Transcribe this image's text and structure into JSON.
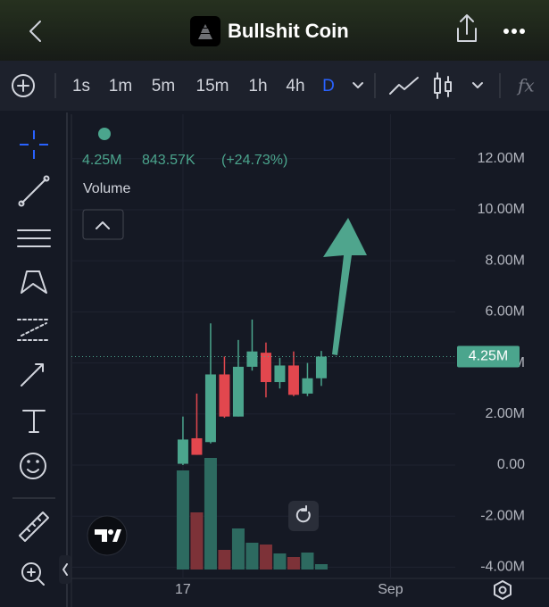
{
  "header": {
    "title": "Bullshit Coin"
  },
  "toolbar": {
    "intervals": [
      "1s",
      "1m",
      "5m",
      "15m",
      "1h",
      "4h",
      "D"
    ],
    "active": 6,
    "formula": "fx"
  },
  "chart_data": {
    "type": "candlestick",
    "legend": {
      "value": "4.25M",
      "volume": "843.57K",
      "change": "(+24.73%)",
      "series_name": "Volume"
    },
    "x": [
      0,
      1,
      2,
      3,
      4,
      5,
      6,
      7,
      8,
      9,
      10
    ],
    "xlim": [
      -8.06,
      19.68
    ],
    "xticks": [
      {
        "value": 0,
        "label": "17"
      },
      {
        "value": 15,
        "label": "Sep"
      }
    ],
    "ylim": [
      -4440000,
      13740000
    ],
    "yticks": [
      {
        "value": 12000000,
        "label": "12.00M"
      },
      {
        "value": 10000000,
        "label": "10.00M"
      },
      {
        "value": 8000000,
        "label": "8.00M"
      },
      {
        "value": 6000000,
        "label": "6.00M"
      },
      {
        "value": 4000000,
        "label": "4.00M"
      },
      {
        "value": 2000000,
        "label": "2.00M"
      },
      {
        "value": 0,
        "label": "0.00"
      },
      {
        "value": -2000000,
        "label": "-2.00M"
      },
      {
        "value": -4000000,
        "label": "-4.00M"
      }
    ],
    "open": [
      50000,
      1050000,
      900000,
      3550000,
      1900000,
      3850000,
      4400000,
      3250000,
      3900000,
      2800000,
      3400000
    ],
    "high": [
      1900000,
      2800000,
      5550000,
      4250000,
      4900000,
      5700000,
      4800000,
      4200000,
      4450000,
      4000000,
      4470000
    ],
    "low": [
      0,
      400000,
      850000,
      1850000,
      1900000,
      3700000,
      2650000,
      3000000,
      2700000,
      2700000,
      3100000
    ],
    "close": [
      1000000,
      400000,
      3550000,
      1900000,
      3850000,
      4450000,
      3250000,
      3900000,
      2750000,
      3400000,
      4250000
    ],
    "volume": [
      111,
      64,
      125,
      22,
      46,
      30,
      28,
      18,
      14,
      19,
      6
    ],
    "up_color": "#4ba58d",
    "down_color": "#e2474e",
    "up_volume_color": "#2d6a60",
    "down_volume_color": "#7d3238",
    "last_price": {
      "value": 4250000,
      "label": "4.25M"
    },
    "grid": true
  }
}
